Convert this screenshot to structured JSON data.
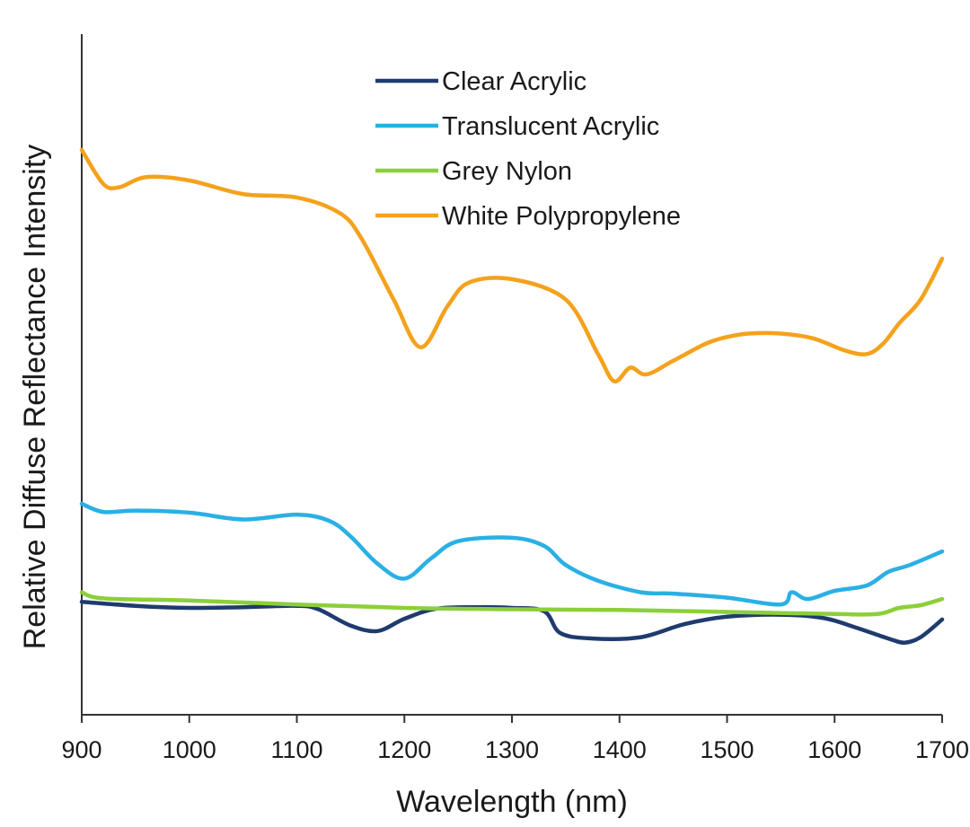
{
  "chart_data": {
    "type": "line",
    "title": "",
    "xlabel": "Wavelength (nm)",
    "ylabel": "Relative Diffuse Reflectance Intensity",
    "xlim": [
      900,
      1700
    ],
    "ylim": [
      0,
      1
    ],
    "xticks": [
      900,
      1000,
      1100,
      1200,
      1300,
      1400,
      1500,
      1600,
      1700
    ],
    "xtick_labels": [
      "900",
      "1000",
      "1100",
      "1200",
      "1300",
      "1400",
      "1500",
      "1600",
      "1700"
    ],
    "y_ticks_shown": false,
    "grid": false,
    "legend_position": "top-center",
    "series": [
      {
        "name": "Clear Acrylic",
        "color": "#1f3b6e",
        "x": [
          900,
          950,
          1000,
          1050,
          1100,
          1120,
          1150,
          1175,
          1200,
          1230,
          1270,
          1300,
          1330,
          1345,
          1375,
          1420,
          1460,
          1500,
          1550,
          1590,
          1620,
          1650,
          1665,
          1680,
          1700
        ],
        "y": [
          0.166,
          0.16,
          0.157,
          0.158,
          0.16,
          0.155,
          0.131,
          0.123,
          0.141,
          0.156,
          0.158,
          0.157,
          0.152,
          0.12,
          0.112,
          0.114,
          0.133,
          0.144,
          0.147,
          0.142,
          0.128,
          0.112,
          0.106,
          0.114,
          0.14
        ]
      },
      {
        "name": "Translucent Acrylic",
        "color": "#2ab0e4",
        "x": [
          900,
          920,
          950,
          1000,
          1050,
          1100,
          1130,
          1150,
          1175,
          1200,
          1225,
          1250,
          1300,
          1330,
          1350,
          1380,
          1420,
          1450,
          1500,
          1550,
          1560,
          1575,
          1600,
          1630,
          1650,
          1670,
          1700
        ],
        "y": [
          0.31,
          0.298,
          0.3,
          0.297,
          0.287,
          0.294,
          0.285,
          0.262,
          0.222,
          0.2,
          0.23,
          0.255,
          0.26,
          0.248,
          0.22,
          0.197,
          0.18,
          0.178,
          0.172,
          0.162,
          0.18,
          0.17,
          0.182,
          0.19,
          0.21,
          0.22,
          0.24
        ]
      },
      {
        "name": "Grey Nylon",
        "color": "#8ccf3a",
        "x": [
          900,
          920,
          1000,
          1100,
          1200,
          1300,
          1400,
          1500,
          1600,
          1640,
          1660,
          1680,
          1700
        ],
        "y": [
          0.18,
          0.171,
          0.168,
          0.162,
          0.157,
          0.155,
          0.154,
          0.151,
          0.148,
          0.148,
          0.157,
          0.161,
          0.17
        ]
      },
      {
        "name": "White Polypropylene",
        "color": "#f4a21c",
        "x": [
          900,
          920,
          935,
          960,
          1000,
          1050,
          1100,
          1140,
          1160,
          1190,
          1215,
          1240,
          1260,
          1300,
          1350,
          1380,
          1395,
          1410,
          1425,
          1450,
          1480,
          1500,
          1520,
          1550,
          1580,
          1610,
          1630,
          1645,
          1660,
          1680,
          1700
        ],
        "y": [
          0.83,
          0.78,
          0.775,
          0.79,
          0.785,
          0.765,
          0.76,
          0.737,
          0.7,
          0.61,
          0.54,
          0.6,
          0.635,
          0.64,
          0.61,
          0.53,
          0.49,
          0.51,
          0.5,
          0.52,
          0.545,
          0.555,
          0.56,
          0.56,
          0.553,
          0.535,
          0.53,
          0.545,
          0.575,
          0.61,
          0.67
        ]
      }
    ]
  }
}
